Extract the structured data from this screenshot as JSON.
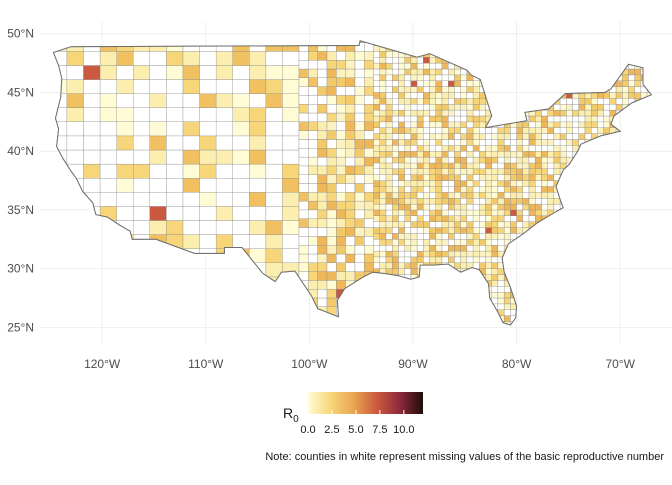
{
  "map": {
    "latitude_labels": [
      "25°N",
      "30°N",
      "35°N",
      "40°N",
      "45°N",
      "50°N"
    ],
    "latitude_values": [
      25,
      30,
      35,
      40,
      45,
      50
    ],
    "longitude_labels": [
      "120°W",
      "110°W",
      "100°W",
      "90°W",
      "80°W",
      "70°W"
    ],
    "longitude_values": [
      -120,
      -110,
      -100,
      -90,
      -80,
      -70
    ],
    "lon_range": [
      -126,
      -65
    ],
    "lat_range": [
      23.5,
      51
    ],
    "missing_fill": "#ffffff",
    "border_color": "#7f7f7f"
  },
  "legend": {
    "title": "R",
    "title_subscript": "0",
    "tick_labels": [
      "0.0",
      "2.5",
      "5.0",
      "7.5",
      "10.0"
    ],
    "tick_values": [
      0,
      2.5,
      5,
      7.5,
      10
    ],
    "range": [
      0,
      12
    ],
    "colors": [
      "#fffbd5",
      "#f6d679",
      "#e9a44f",
      "#cc5840",
      "#8c2a3d",
      "#1f0d08"
    ]
  },
  "caption": "Note: counties in white represent missing values of the basic reproductive number"
}
